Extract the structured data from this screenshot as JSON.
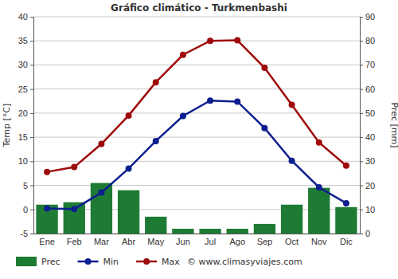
{
  "chart_data": {
    "type": "line",
    "title": "Gráfico climático - Turkmenbashi",
    "y_label": "Temp [°C]",
    "y2_label": "Prec [mm]",
    "annotations": [
      "© www.climasyviajes.com"
    ],
    "categories": [
      "Ene",
      "Feb",
      "Mar",
      "Abr",
      "May",
      "Jun",
      "Jul",
      "Ago",
      "Sep",
      "Oct",
      "Nov",
      "Dic"
    ],
    "series": [
      {
        "name": "Prec",
        "type": "bar",
        "axis": "y2",
        "color": "#1e7b34",
        "values": [
          12,
          13,
          21,
          18,
          7,
          2,
          2,
          2,
          4,
          12,
          19,
          11
        ]
      },
      {
        "name": "Min",
        "type": "line",
        "marker": "circle",
        "color": "#0d1f8f",
        "values": [
          0.2,
          0.1,
          3.5,
          8.5,
          14.2,
          19.4,
          22.6,
          22.4,
          16.9,
          10.1,
          4.6,
          1.3
        ]
      },
      {
        "name": "Max",
        "type": "line",
        "marker": "circle",
        "color": "#9e0b0b",
        "values": [
          7.8,
          8.8,
          13.6,
          19.5,
          26.4,
          32.1,
          35,
          35.1,
          29.4,
          21.7,
          13.9,
          9.1
        ]
      }
    ],
    "ylim": [
      -5,
      40
    ],
    "yticks": [
      -5,
      0,
      5,
      10,
      15,
      20,
      25,
      30,
      35,
      40
    ],
    "y2lim": [
      0,
      90
    ],
    "y2ticks": [
      0,
      10,
      20,
      30,
      40,
      50,
      60,
      70,
      80,
      90
    ],
    "grid": true,
    "legend": "bottom"
  }
}
